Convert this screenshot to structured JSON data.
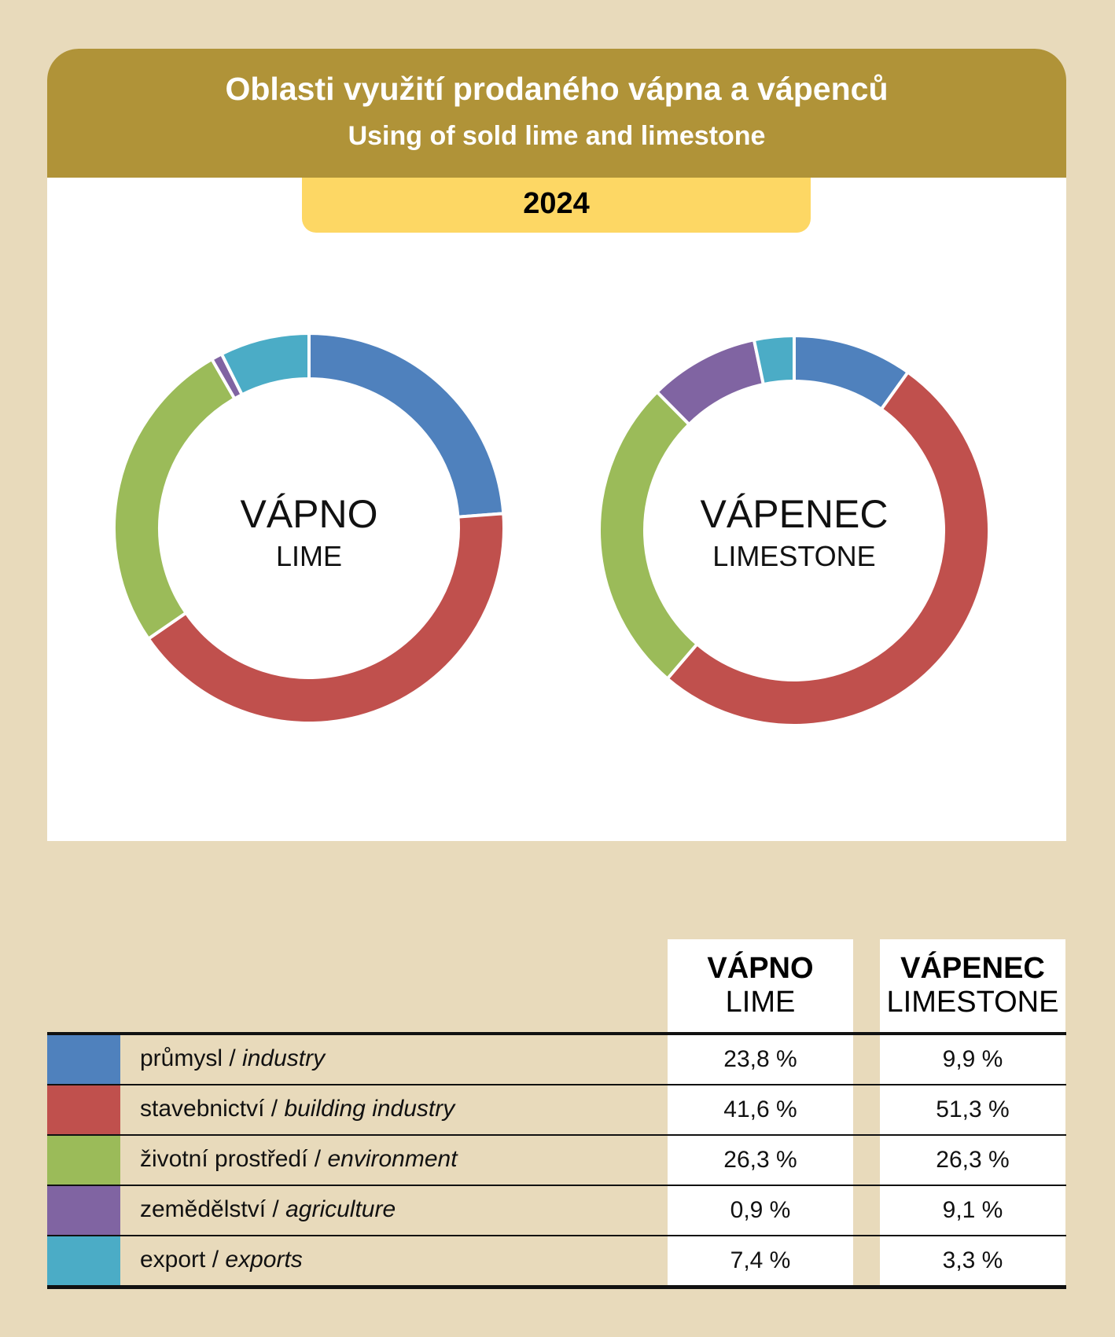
{
  "title": "Oblasti využití prodaného vápna a vápenců",
  "subtitle": "Using of sold lime and limestone",
  "year": "2024",
  "columns": [
    {
      "cz": "VÁPNO",
      "en": "LIME"
    },
    {
      "cz": "VÁPENEC",
      "en": "LIMESTONE"
    }
  ],
  "chart_data": [
    {
      "type": "pie",
      "title": "VÁPNO / LIME",
      "categories": [
        "průmysl / industry",
        "stavebnictví / building industry",
        "životní prostředí / environment",
        "zemědělství / agriculture",
        "export / exports"
      ],
      "values": [
        23.8,
        41.6,
        26.3,
        0.9,
        7.4
      ]
    },
    {
      "type": "pie",
      "title": "VÁPENEC / LIMESTONE",
      "categories": [
        "průmysl / industry",
        "stavebnictví / building industry",
        "životní prostředí / environment",
        "zemědělství / agriculture",
        "export / exports"
      ],
      "values": [
        9.9,
        51.3,
        26.3,
        9.1,
        3.3
      ]
    }
  ],
  "rows": [
    {
      "cz": "průmysl",
      "en": "industry",
      "color": "#4f81bd",
      "lime": "23,8 %",
      "limestone": "9,9 %"
    },
    {
      "cz": "stavebnictví",
      "en": "building industry",
      "color": "#c0504d",
      "lime": "41,6 %",
      "limestone": "51,3 %"
    },
    {
      "cz": "životní prostředí",
      "en": "environment",
      "color": "#9bbb59",
      "lime": "26,3 %",
      "limestone": "26,3 %"
    },
    {
      "cz": "zemědělství",
      "en": "agriculture",
      "color": "#8064a2",
      "lime": "0,9 %",
      "limestone": "9,1 %"
    },
    {
      "cz": "export",
      "en": "exports",
      "color": "#4bacc6",
      "lime": "7,4 %",
      "limestone": "3,3 %"
    }
  ]
}
